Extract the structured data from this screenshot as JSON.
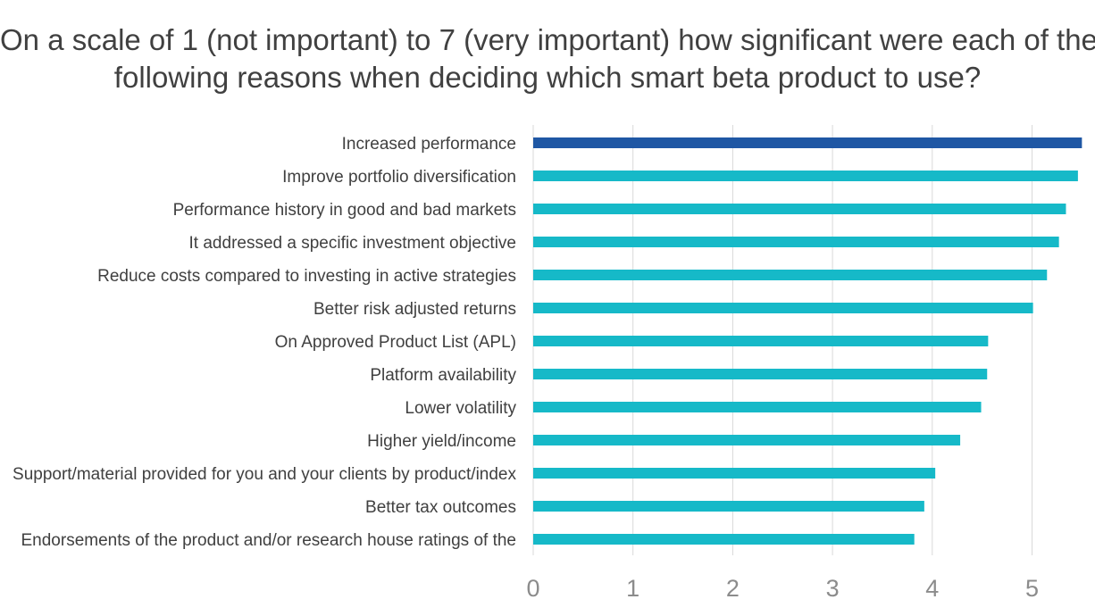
{
  "chart_data": {
    "type": "bar",
    "orientation": "horizontal",
    "title_lines": [
      "On a scale of 1 (not important) to 7 (very important) how significant were each of the",
      "following reasons when deciding which smart beta product to use?"
    ],
    "categories": [
      "Increased performance",
      "Improve portfolio diversification",
      "Performance history in good and bad markets",
      "It addressed a specific investment objective",
      "Reduce costs compared to investing in active strategies",
      "Better risk adjusted returns",
      "On Approved Product List (APL)",
      "Platform availability",
      "Lower volatility",
      "Higher yield/income",
      "Support/material provided for you and your clients by product/index",
      "Better tax outcomes",
      "Endorsements of the product and/or research house ratings of the"
    ],
    "values": [
      5.5,
      5.46,
      5.34,
      5.27,
      5.15,
      5.01,
      4.56,
      4.55,
      4.49,
      4.28,
      4.03,
      3.92,
      3.82
    ],
    "x_ticks": [
      "0",
      "1",
      "2",
      "3",
      "4",
      "5"
    ],
    "xlim": [
      0,
      5.6
    ],
    "grid": true,
    "colors": {
      "highlight": "#1f57a4",
      "bar": "#16b9c8",
      "grid": "#d9d9d9",
      "title_text": "#404040",
      "label_text": "#404040",
      "tick_text": "#8c8c8c"
    }
  }
}
